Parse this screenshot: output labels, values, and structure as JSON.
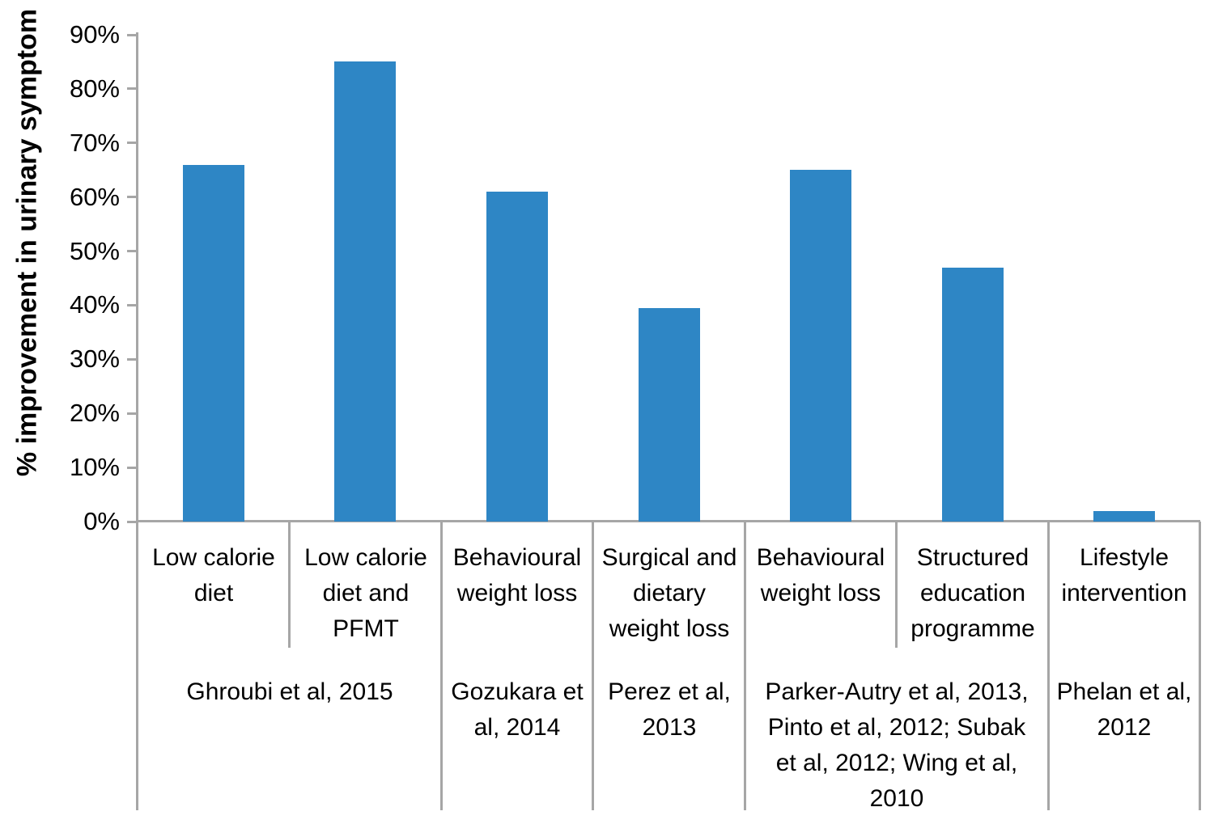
{
  "chart_data": {
    "type": "bar",
    "title": "",
    "ylabel": "% improvement in urinary symptom",
    "xlabel": "",
    "ylim": [
      0,
      90
    ],
    "ytick_step": 10,
    "ytick_labels": [
      "0%",
      "10%",
      "20%",
      "30%",
      "40%",
      "50%",
      "60%",
      "70%",
      "80%",
      "90%"
    ],
    "grid": false,
    "legend": "none",
    "bar_color": "#2E86C5",
    "axis_color": "#A6A6A6",
    "categories": [
      "Low calorie diet",
      "Low calorie diet and PFMT",
      "Behavioural weight loss",
      "Surgical and dietary weight loss",
      "Behavioural weight loss",
      "Structured education programme",
      "Lifestyle intervention"
    ],
    "values": [
      66,
      85,
      61,
      39.5,
      65,
      47,
      2
    ],
    "citations": [
      {
        "label": "Ghroubi et al, 2015",
        "span": [
          0,
          1
        ]
      },
      {
        "label": "Gozukara et al, 2014",
        "span": [
          2,
          2
        ]
      },
      {
        "label": "Perez et al, 2013",
        "span": [
          3,
          3
        ]
      },
      {
        "label": "Parker-Autry et al, 2013, Pinto et al, 2012; Subak et al, 2012; Wing et al, 2010",
        "span": [
          4,
          5
        ]
      },
      {
        "label": "Phelan et al, 2012",
        "span": [
          6,
          6
        ]
      }
    ]
  }
}
